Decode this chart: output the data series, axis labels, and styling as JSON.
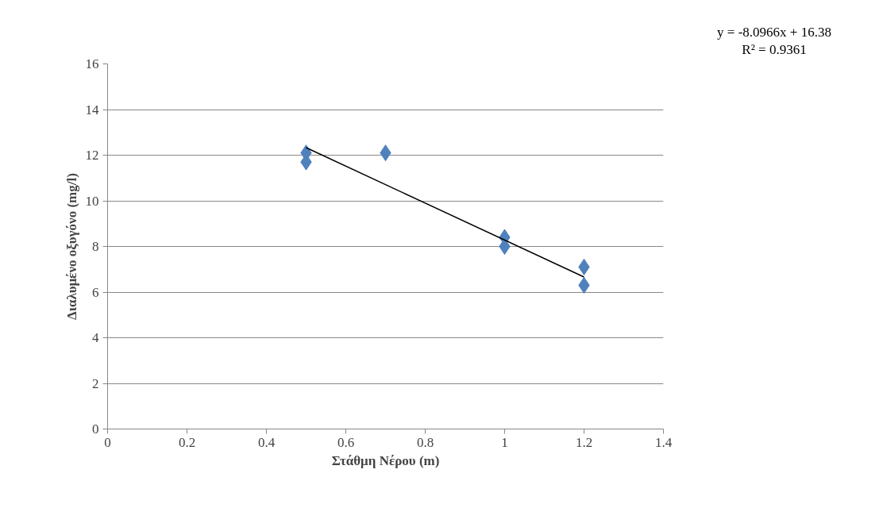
{
  "chart_data": {
    "type": "scatter",
    "xlabel": "Στάθμη Νέρου (m)",
    "ylabel": "Διαλυμένο οξυγόνο (mg/l)",
    "x": [
      0.5,
      0.5,
      0.7,
      1.0,
      1.0,
      1.2,
      1.2
    ],
    "series": [
      {
        "color": "#4f81bd",
        "marker": "diamond",
        "values": [
          12.1,
          11.7,
          12.1,
          8.4,
          8.0,
          7.1,
          6.3
        ]
      },
      {
        "type": "line",
        "color": "#000000",
        "x": [
          0.5,
          1.2
        ],
        "values": [
          12.33,
          6.66
        ]
      }
    ],
    "annotations": [
      "y = -8.0966x + 16.38",
      "R² = 0.9361"
    ],
    "xlim": [
      0,
      1.4
    ],
    "xticks": [
      0,
      0.2,
      0.4,
      0.6,
      0.8,
      1,
      1.2,
      1.4
    ],
    "ylim": [
      0,
      16
    ],
    "yticks": [
      0,
      2,
      4,
      6,
      8,
      10,
      12,
      14,
      16
    ],
    "grid": "y"
  }
}
